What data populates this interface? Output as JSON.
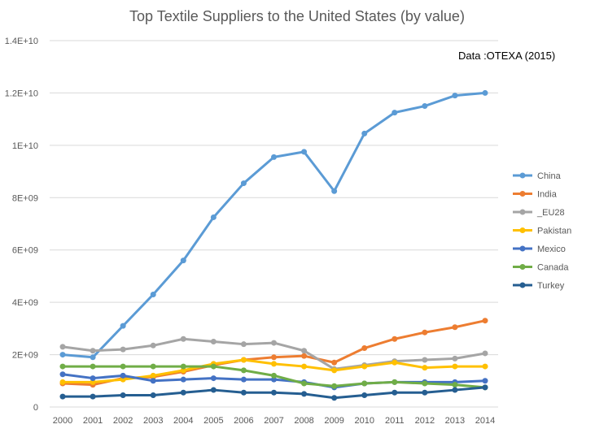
{
  "chart_data": {
    "type": "line",
    "title": "Top Textile Suppliers to the United States (by value)",
    "source_note": "Data :OTEXA (2015)",
    "xlabel": "",
    "ylabel": "",
    "ylim": [
      0,
      14000000000
    ],
    "grid": true,
    "legend_position": "right",
    "y_tick_labels": [
      "0",
      "2E+09",
      "4E+09",
      "6E+09",
      "8E+09",
      "1E+10",
      "1.2E+10",
      "1.4E+10"
    ],
    "y_ticks": [
      0,
      2000000000,
      4000000000,
      6000000000,
      8000000000,
      10000000000,
      12000000000,
      14000000000
    ],
    "x": [
      "2000",
      "2001",
      "2002",
      "2003",
      "2004",
      "2005",
      "2006",
      "2007",
      "2008",
      "2009",
      "2010",
      "2011",
      "2012",
      "2013",
      "2014"
    ],
    "series": [
      {
        "name": "China",
        "color": "#5b9bd5",
        "values": [
          2000000000,
          1900000000,
          3100000000,
          4300000000,
          5600000000,
          7250000000,
          8550000000,
          9550000000,
          9750000000,
          8250000000,
          10450000000,
          11250000000,
          11500000000,
          11900000000,
          12000000000
        ]
      },
      {
        "name": "India",
        "color": "#ed7d31",
        "values": [
          900000000,
          850000000,
          1100000000,
          1150000000,
          1350000000,
          1600000000,
          1800000000,
          1900000000,
          1950000000,
          1700000000,
          2250000000,
          2600000000,
          2850000000,
          3050000000,
          3300000000
        ]
      },
      {
        "name": "_EU28",
        "color": "#a5a5a5",
        "values": [
          2300000000,
          2150000000,
          2200000000,
          2350000000,
          2600000000,
          2500000000,
          2400000000,
          2450000000,
          2150000000,
          1450000000,
          1600000000,
          1750000000,
          1800000000,
          1850000000,
          2050000000
        ]
      },
      {
        "name": "Pakistan",
        "color": "#ffc000",
        "values": [
          950000000,
          950000000,
          1050000000,
          1200000000,
          1400000000,
          1650000000,
          1800000000,
          1650000000,
          1550000000,
          1400000000,
          1550000000,
          1700000000,
          1500000000,
          1550000000,
          1550000000
        ]
      },
      {
        "name": "Mexico",
        "color": "#4472c4",
        "values": [
          1250000000,
          1100000000,
          1200000000,
          1000000000,
          1050000000,
          1100000000,
          1050000000,
          1050000000,
          950000000,
          750000000,
          900000000,
          950000000,
          950000000,
          950000000,
          1000000000
        ]
      },
      {
        "name": "Canada",
        "color": "#70ad47",
        "values": [
          1550000000,
          1550000000,
          1550000000,
          1550000000,
          1550000000,
          1550000000,
          1400000000,
          1200000000,
          900000000,
          800000000,
          900000000,
          950000000,
          900000000,
          850000000,
          750000000
        ]
      },
      {
        "name": "Turkey",
        "color": "#255e91",
        "values": [
          400000000,
          400000000,
          450000000,
          450000000,
          550000000,
          650000000,
          550000000,
          550000000,
          500000000,
          350000000,
          450000000,
          550000000,
          550000000,
          650000000,
          750000000
        ]
      }
    ]
  }
}
